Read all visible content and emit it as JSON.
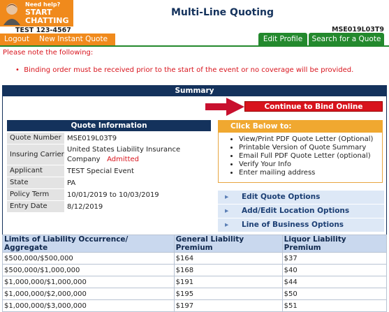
{
  "header": {
    "chat": {
      "line1": "Need help?",
      "line2": "START",
      "line3": "CHATTING >>"
    },
    "title": "Multi-Line Quoting",
    "account": "TEST 123-4567",
    "quote_id": "MSE019L03T9"
  },
  "nav": [
    "Logout",
    "New Instant Quote"
  ],
  "actions": [
    "Edit Profile",
    "Search for a Quote"
  ],
  "notice": {
    "heading": "Please note the following:",
    "items": [
      "Binding order must be received prior to the start of the event or no coverage will be provided."
    ]
  },
  "summary": {
    "title": "Summary",
    "bind_button": "Continue to Bind Online",
    "quote_info": {
      "title": "Quote Information",
      "rows": [
        {
          "label": "Quote Number",
          "value": "MSE019L03T9"
        },
        {
          "label": "Insuring Carrier",
          "value": "United States Liability Insurance Company",
          "status": "Admitted"
        },
        {
          "label": "Applicant",
          "value": "TEST Special Event"
        },
        {
          "label": "State",
          "value": "PA"
        },
        {
          "label": "Policy Term",
          "value": "10/01/2019 to 10/03/2019"
        },
        {
          "label": "Entry Date",
          "value": "8/12/2019"
        }
      ]
    },
    "click_below": {
      "title": "Click Below to:",
      "items": [
        "View/Print PDF Quote Letter (Optional)",
        "Printable Version of Quote Summary",
        "Email Full PDF Quote Letter (optional)",
        "Verify Your Info",
        "Enter mailing address"
      ]
    },
    "options": [
      "Edit Quote Options",
      "Add/Edit Location Options",
      "Line of Business Options"
    ]
  },
  "table": {
    "headers": [
      "Limits of Liability Occurrence/ Aggregate",
      "General Liability Premium",
      "Liquor Liability Premium"
    ],
    "rows": [
      [
        "$500,000/$500,000",
        "$164",
        "$37"
      ],
      [
        "$500,000/$1,000,000",
        "$168",
        "$40"
      ],
      [
        "$1,000,000/$1,000,000",
        "$191",
        "$44"
      ],
      [
        "$1,000,000/$2,000,000",
        "$195",
        "$50"
      ],
      [
        "$1,000,000/$3,000,000",
        "$197",
        "$51"
      ]
    ]
  }
}
